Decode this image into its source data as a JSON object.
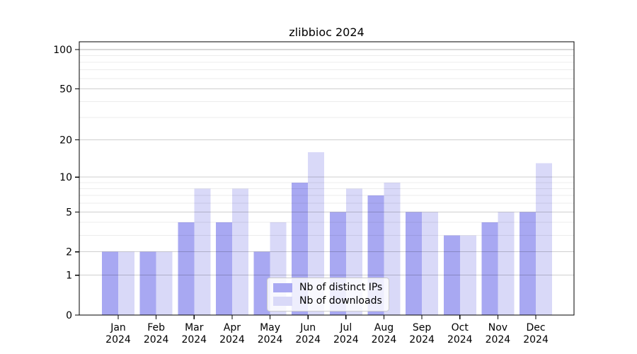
{
  "figure": {
    "background": "#ffffff"
  },
  "chart_data": {
    "type": "bar",
    "title": "zlibbioc 2024",
    "xlabel": "",
    "ylabel": "",
    "y_scale": "log1p",
    "ylim": [
      0,
      100
    ],
    "y_ticks": [
      0,
      1,
      2,
      5,
      10,
      20,
      50,
      100
    ],
    "y_minor_gridlines": [
      3,
      4,
      6,
      7,
      8,
      9,
      30,
      40,
      60,
      70,
      80,
      90
    ],
    "grid": true,
    "legend_position": "lower-center-inside",
    "categories": [
      {
        "month": "Jan",
        "year": "2024"
      },
      {
        "month": "Feb",
        "year": "2024"
      },
      {
        "month": "Mar",
        "year": "2024"
      },
      {
        "month": "Apr",
        "year": "2024"
      },
      {
        "month": "May",
        "year": "2024"
      },
      {
        "month": "Jun",
        "year": "2024"
      },
      {
        "month": "Jul",
        "year": "2024"
      },
      {
        "month": "Aug",
        "year": "2024"
      },
      {
        "month": "Sep",
        "year": "2024"
      },
      {
        "month": "Oct",
        "year": "2024"
      },
      {
        "month": "Nov",
        "year": "2024"
      },
      {
        "month": "Dec",
        "year": "2024"
      }
    ],
    "series": [
      {
        "name": "Nb of distinct IPs",
        "color": "#a8a8f2",
        "values": [
          2,
          2,
          4,
          4,
          2,
          9,
          5,
          7,
          5,
          3,
          4,
          5
        ]
      },
      {
        "name": "Nb of downloads",
        "color": "#d9d9f8",
        "values": [
          2,
          2,
          8,
          8,
          4,
          16,
          8,
          9,
          5,
          3,
          5,
          13
        ]
      }
    ]
  },
  "legend": {
    "items": [
      {
        "label": "Nb of distinct IPs",
        "color": "#a8a8f2"
      },
      {
        "label": "Nb of downloads",
        "color": "#d9d9f8"
      }
    ]
  }
}
